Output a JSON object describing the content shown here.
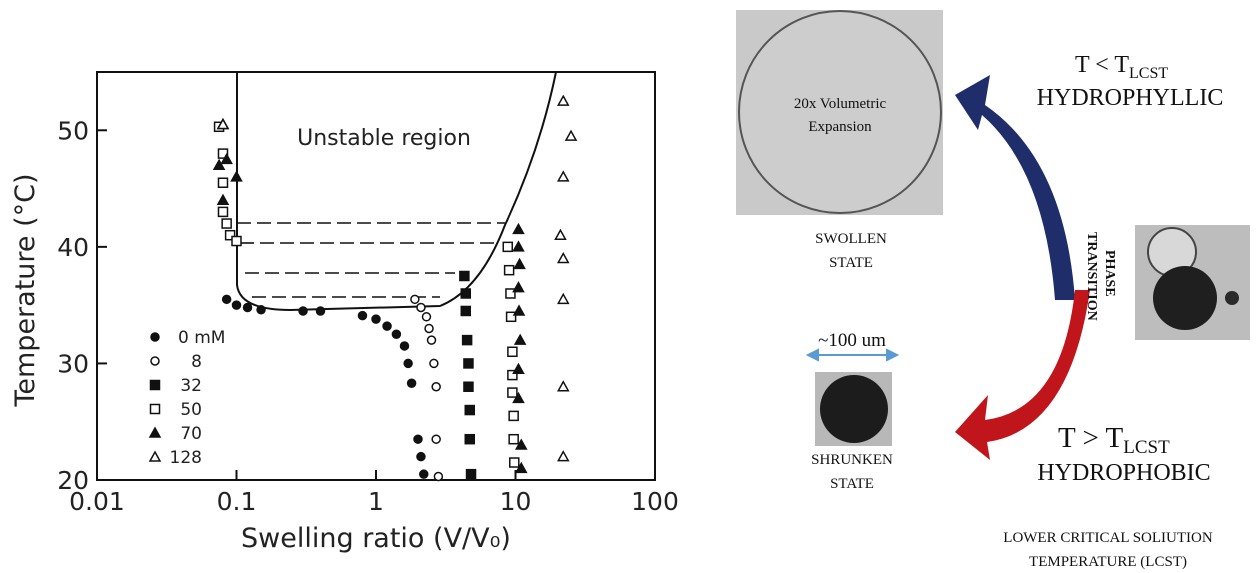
{
  "chart_data": {
    "type": "scatter",
    "xlabel": "Swelling ratio (V/V₀)",
    "ylabel": "Temperature (°C)",
    "annotation": "Unstable region",
    "xscale": "log",
    "xlim": [
      0.01,
      100
    ],
    "ylim": [
      20,
      55
    ],
    "xticks": [
      0.01,
      0.1,
      1,
      10,
      100
    ],
    "yticks": [
      20,
      30,
      40,
      50
    ],
    "series": [
      {
        "name": "0 mM",
        "color": "#111111",
        "marker": "circle",
        "filled": true,
        "x": [
          0.085,
          0.1,
          0.12,
          0.15,
          0.3,
          0.4,
          0.8,
          1.0,
          1.2,
          1.4,
          1.6,
          1.7,
          1.8,
          2.0,
          2.1,
          2.2
        ],
        "y": [
          35.5,
          35,
          34.8,
          34.6,
          34.5,
          34.5,
          34.1,
          33.8,
          33.2,
          32.5,
          31.5,
          30,
          28.3,
          23.5,
          22,
          20.5
        ]
      },
      {
        "name": "8",
        "color": "#111111",
        "marker": "circle",
        "filled": false,
        "x": [
          1.9,
          2.1,
          2.3,
          2.4,
          2.5,
          2.6,
          2.7,
          2.7,
          2.8
        ],
        "y": [
          35.5,
          34.8,
          34,
          33,
          32,
          30,
          28,
          23.5,
          20.3
        ]
      },
      {
        "name": "32",
        "color": "#111111",
        "marker": "square",
        "filled": true,
        "x": [
          4.3,
          4.4,
          4.4,
          4.5,
          4.6,
          4.6,
          4.7,
          4.7,
          4.8
        ],
        "y": [
          37.5,
          36,
          34.5,
          32,
          30,
          28,
          26,
          23.5,
          20.5
        ]
      },
      {
        "name": "50",
        "color": "#111111",
        "marker": "square",
        "filled": false,
        "x": [
          0.075,
          0.08,
          0.08,
          0.08,
          0.085,
          0.09,
          0.1,
          8.8,
          9,
          9.2,
          9.3,
          9.5,
          9.5,
          9.5,
          9.7,
          9.7,
          9.8
        ],
        "y": [
          50.3,
          48,
          45.5,
          43,
          42,
          41,
          40.5,
          40,
          38,
          36,
          34,
          31,
          29,
          27.5,
          25.5,
          23.5,
          21.5
        ]
      },
      {
        "name": "70",
        "color": "#111111",
        "marker": "triangle",
        "filled": true,
        "x": [
          0.08,
          0.075,
          0.085,
          0.1,
          0.08,
          10.5,
          10.5,
          10.7,
          10.5,
          10.6,
          10.8,
          10.5,
          10.5,
          11,
          11
        ],
        "y": [
          50.5,
          47,
          47.5,
          46,
          44,
          41.5,
          40,
          38.5,
          36.5,
          34.5,
          32,
          29.5,
          27,
          23,
          21
        ]
      },
      {
        "name": "128",
        "color": "#111111",
        "marker": "triangle",
        "filled": false,
        "x": [
          0.08,
          22,
          25,
          22,
          21,
          22,
          22,
          22,
          22
        ],
        "y": [
          50.5,
          52.5,
          49.5,
          46,
          41,
          39,
          35.5,
          28,
          22
        ]
      }
    ]
  },
  "diagram": {
    "swollen_image_text": [
      "20x Volumetric",
      "Expansion"
    ],
    "swollen_label": [
      "SWOLLEN",
      "STATE"
    ],
    "size_label": "~100 um",
    "shrunken_label": [
      "SHRUNKEN",
      "STATE"
    ],
    "cold_condition": [
      "T < T",
      "LCST"
    ],
    "cold_state": "HYDROPHYLLIC",
    "transition_label": [
      "PHASE",
      "TRANSITION"
    ],
    "hot_condition": [
      "T > T",
      "LCST"
    ],
    "hot_state": "HYDROPHOBIC",
    "footnote": [
      "LOWER CRITICAL SOLIUTION",
      "TEMPERATURE (LCST)"
    ]
  }
}
